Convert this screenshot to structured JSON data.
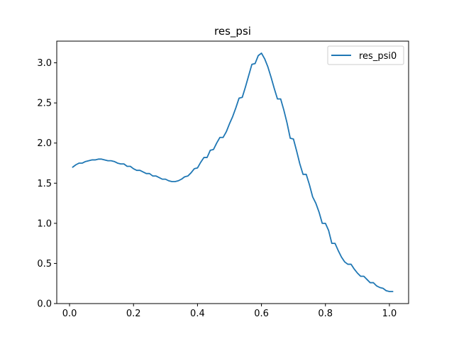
{
  "chart_data": {
    "type": "line",
    "title": "res_psi",
    "xlabel": "",
    "ylabel": "",
    "xlim": [
      -0.04,
      1.06
    ],
    "ylim": [
      0.0,
      3.27
    ],
    "xticks": [
      0.0,
      0.2,
      0.4,
      0.6,
      0.8,
      1.0
    ],
    "xtick_labels": [
      "0.0",
      "0.2",
      "0.4",
      "0.6",
      "0.8",
      "1.0"
    ],
    "yticks": [
      0.0,
      0.5,
      1.0,
      1.5,
      2.0,
      2.5,
      3.0
    ],
    "ytick_labels": [
      "0.0",
      "0.5",
      "1.0",
      "1.5",
      "2.0",
      "2.5",
      "3.0"
    ],
    "grid": false,
    "legend_position": "top-right",
    "series": [
      {
        "name": "res_psi0",
        "color": "#1f77b4",
        "x": [
          0.01,
          0.02,
          0.03,
          0.04,
          0.05,
          0.06,
          0.07,
          0.08,
          0.09,
          0.1,
          0.11,
          0.12,
          0.13,
          0.14,
          0.15,
          0.16,
          0.17,
          0.18,
          0.19,
          0.2,
          0.21,
          0.22,
          0.23,
          0.24,
          0.25,
          0.26,
          0.27,
          0.28,
          0.29,
          0.3,
          0.31,
          0.32,
          0.33,
          0.34,
          0.35,
          0.36,
          0.37,
          0.38,
          0.39,
          0.4,
          0.41,
          0.42,
          0.43,
          0.44,
          0.45,
          0.46,
          0.47,
          0.48,
          0.49,
          0.5,
          0.51,
          0.52,
          0.53,
          0.54,
          0.55,
          0.56,
          0.57,
          0.58,
          0.59,
          0.6,
          0.61,
          0.62,
          0.63,
          0.64,
          0.65,
          0.66,
          0.67,
          0.68,
          0.69,
          0.7,
          0.71,
          0.72,
          0.73,
          0.74,
          0.75,
          0.76,
          0.77,
          0.78,
          0.79,
          0.8,
          0.81,
          0.82,
          0.83,
          0.84,
          0.85,
          0.86,
          0.87,
          0.88,
          0.89,
          0.9,
          0.91,
          0.92,
          0.93,
          0.94,
          0.95,
          0.96,
          0.97,
          0.98,
          0.99,
          1.0,
          1.01
        ],
        "y": [
          1.7,
          1.73,
          1.75,
          1.75,
          1.77,
          1.78,
          1.79,
          1.79,
          1.8,
          1.8,
          1.79,
          1.78,
          1.78,
          1.77,
          1.75,
          1.74,
          1.74,
          1.71,
          1.71,
          1.68,
          1.66,
          1.66,
          1.64,
          1.62,
          1.62,
          1.59,
          1.59,
          1.57,
          1.55,
          1.55,
          1.53,
          1.52,
          1.52,
          1.53,
          1.55,
          1.58,
          1.59,
          1.63,
          1.68,
          1.69,
          1.76,
          1.82,
          1.82,
          1.91,
          1.92,
          2.0,
          2.07,
          2.07,
          2.14,
          2.24,
          2.33,
          2.44,
          2.56,
          2.57,
          2.7,
          2.84,
          2.98,
          2.99,
          3.09,
          3.12,
          3.05,
          2.95,
          2.82,
          2.68,
          2.55,
          2.55,
          2.41,
          2.25,
          2.06,
          2.05,
          1.9,
          1.74,
          1.61,
          1.61,
          1.48,
          1.33,
          1.25,
          1.14,
          1.0,
          1.0,
          0.91,
          0.75,
          0.75,
          0.66,
          0.58,
          0.52,
          0.49,
          0.49,
          0.43,
          0.38,
          0.34,
          0.34,
          0.3,
          0.26,
          0.26,
          0.22,
          0.2,
          0.19,
          0.16,
          0.15,
          0.15
        ]
      }
    ]
  }
}
